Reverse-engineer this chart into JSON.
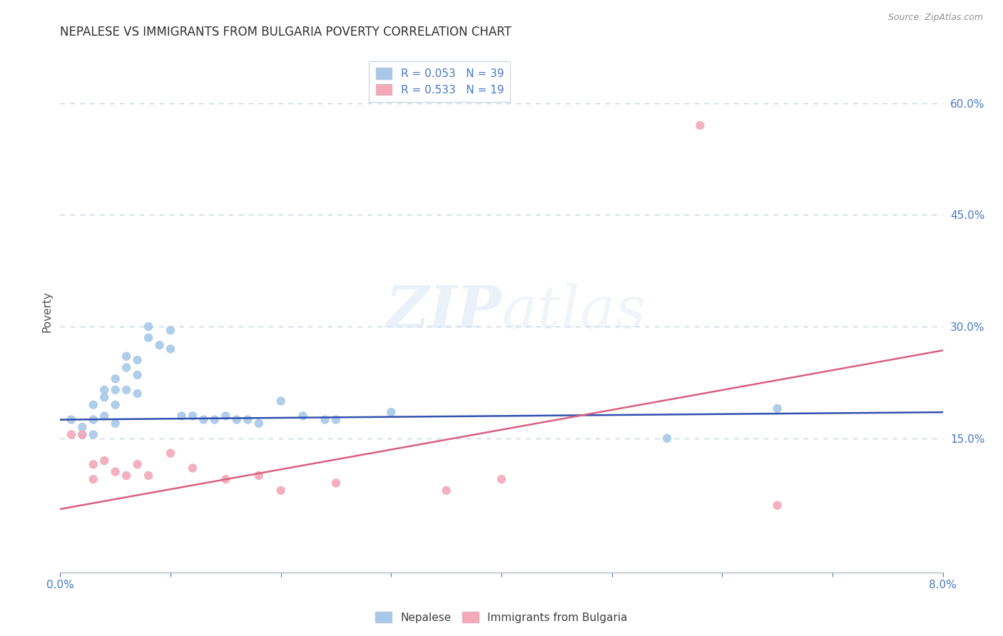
{
  "title": "NEPALESE VS IMMIGRANTS FROM BULGARIA POVERTY CORRELATION CHART",
  "source_text": "Source: ZipAtlas.com",
  "ylabel": "Poverty",
  "xlim": [
    0.0,
    0.08
  ],
  "ylim": [
    -0.03,
    0.67
  ],
  "yticks": [
    0.15,
    0.3,
    0.45,
    0.6
  ],
  "yticklabels": [
    "15.0%",
    "30.0%",
    "45.0%",
    "60.0%"
  ],
  "xticks": [
    0.0,
    0.01,
    0.02,
    0.03,
    0.04,
    0.05,
    0.06,
    0.07,
    0.08
  ],
  "R_blue": 0.053,
  "N_blue": 39,
  "R_pink": 0.533,
  "N_pink": 19,
  "blue_color": "#a8c8e8",
  "pink_color": "#f4a8b8",
  "blue_line_color": "#3050b0",
  "pink_line_color": "#d86080",
  "legend_label_blue": "Nepalese",
  "legend_label_pink": "Immigrants from Bulgaria",
  "blue_scatter_x": [
    0.001,
    0.002,
    0.002,
    0.003,
    0.003,
    0.003,
    0.004,
    0.004,
    0.004,
    0.005,
    0.005,
    0.005,
    0.005,
    0.006,
    0.006,
    0.006,
    0.007,
    0.007,
    0.007,
    0.008,
    0.008,
    0.009,
    0.01,
    0.01,
    0.011,
    0.012,
    0.013,
    0.014,
    0.015,
    0.016,
    0.017,
    0.018,
    0.02,
    0.022,
    0.024,
    0.025,
    0.03,
    0.055,
    0.065
  ],
  "blue_scatter_y": [
    0.175,
    0.165,
    0.155,
    0.195,
    0.175,
    0.155,
    0.215,
    0.205,
    0.18,
    0.23,
    0.215,
    0.195,
    0.17,
    0.26,
    0.245,
    0.215,
    0.255,
    0.235,
    0.21,
    0.3,
    0.285,
    0.275,
    0.295,
    0.27,
    0.18,
    0.18,
    0.175,
    0.175,
    0.18,
    0.175,
    0.175,
    0.17,
    0.2,
    0.18,
    0.175,
    0.175,
    0.185,
    0.15,
    0.19
  ],
  "pink_scatter_x": [
    0.001,
    0.002,
    0.003,
    0.003,
    0.004,
    0.005,
    0.006,
    0.007,
    0.008,
    0.01,
    0.012,
    0.015,
    0.018,
    0.02,
    0.025,
    0.035,
    0.04,
    0.058,
    0.065
  ],
  "pink_scatter_y": [
    0.155,
    0.155,
    0.115,
    0.095,
    0.12,
    0.105,
    0.1,
    0.115,
    0.1,
    0.13,
    0.11,
    0.095,
    0.1,
    0.08,
    0.09,
    0.08,
    0.095,
    0.57,
    0.06
  ],
  "blue_trend_x": [
    0.0,
    0.08
  ],
  "blue_trend_y": [
    0.175,
    0.185
  ],
  "pink_trend_x": [
    0.0,
    0.08
  ],
  "pink_trend_y": [
    0.055,
    0.268
  ],
  "grid_color": "#c8d4e4",
  "background_color": "#ffffff",
  "title_color": "#303030",
  "tick_color": "#4878c8",
  "axis_label_color": "#505050",
  "spine_color": "#b0b8c8"
}
